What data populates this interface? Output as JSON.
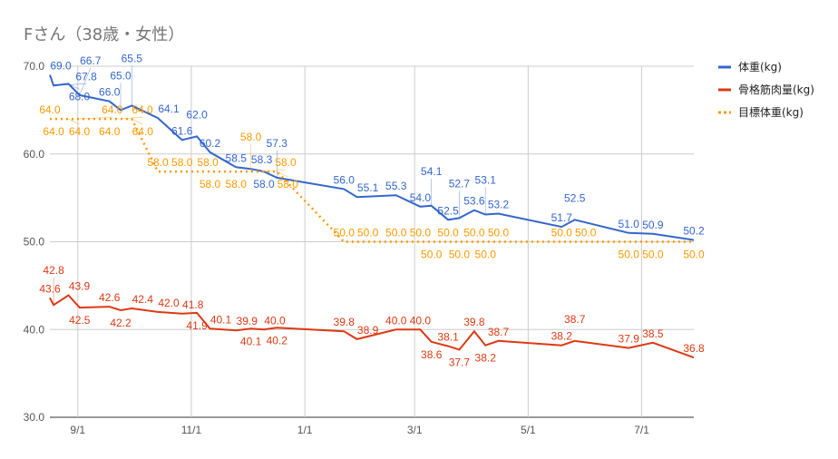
{
  "chart_data": {
    "type": "line",
    "title": "Fさん（38歳・女性）",
    "xlabel": "",
    "ylabel": "",
    "ylim": [
      30,
      70
    ],
    "y_ticks": [
      "30.0",
      "40.0",
      "50.0",
      "60.0",
      "70.0"
    ],
    "x_ticks": [
      {
        "date": "2017-09-01",
        "label": "9/1"
      },
      {
        "date": "2017-11-01",
        "label": "11/1"
      },
      {
        "date": "2018-01-01",
        "label": "1/1"
      },
      {
        "date": "2018-03-01",
        "label": "3/1"
      },
      {
        "date": "2018-05-01",
        "label": "5/1"
      },
      {
        "date": "2018-07-01",
        "label": "7/1"
      }
    ],
    "xlim": [
      "2017-08-17",
      "2018-07-29"
    ],
    "grid": true,
    "legend": "right",
    "x": [
      "2017-08-17",
      "2017-08-19",
      "2017-08-27",
      "2017-09-02",
      "2017-09-18",
      "2017-09-24",
      "2017-09-30",
      "2017-10-14",
      "2017-10-27",
      "2017-11-04",
      "2017-11-11",
      "2017-11-25",
      "2017-12-03",
      "2017-12-10",
      "2017-12-17",
      "2018-01-22",
      "2018-01-29",
      "2018-02-19",
      "2018-03-04",
      "2018-03-10",
      "2018-03-19",
      "2018-03-25",
      "2018-04-02",
      "2018-04-08",
      "2018-04-15",
      "2018-05-19",
      "2018-05-26",
      "2018-06-24",
      "2018-07-07",
      "2018-07-29"
    ],
    "series": [
      {
        "name": "体重(kg)",
        "color": "#3366cc",
        "style": "solid",
        "values": [
          69.0,
          67.8,
          68.0,
          66.7,
          66.0,
          65.0,
          65.5,
          64.1,
          61.6,
          62.0,
          60.2,
          58.5,
          58.3,
          58.0,
          57.3,
          56.0,
          55.1,
          55.3,
          54.0,
          54.1,
          52.5,
          52.7,
          53.6,
          53.1,
          53.2,
          51.7,
          52.5,
          51.0,
          50.9,
          50.2
        ]
      },
      {
        "name": "骨格筋肉量(kg)",
        "color": "#dc3912",
        "style": "solid",
        "values": [
          43.6,
          42.8,
          43.9,
          42.5,
          42.6,
          42.2,
          42.4,
          42.0,
          41.8,
          41.9,
          40.1,
          39.9,
          40.1,
          40.0,
          40.2,
          39.8,
          38.9,
          40.0,
          40.0,
          38.6,
          38.1,
          37.7,
          39.8,
          38.2,
          38.7,
          38.2,
          38.7,
          37.9,
          38.5,
          36.8
        ]
      },
      {
        "name": "目標体重(kg)",
        "color": "#ff9900",
        "style": "dotted",
        "values": [
          64.0,
          64.0,
          64.0,
          64.0,
          64.0,
          64.0,
          64.0,
          58.0,
          58.0,
          58.0,
          58.0,
          58.0,
          58.0,
          58.0,
          58.0,
          50.0,
          50.0,
          50.0,
          50.0,
          50.0,
          50.0,
          50.0,
          50.0,
          50.0,
          50.0,
          50.0,
          50.0,
          50.0,
          50.0,
          50.0
        ]
      }
    ]
  }
}
